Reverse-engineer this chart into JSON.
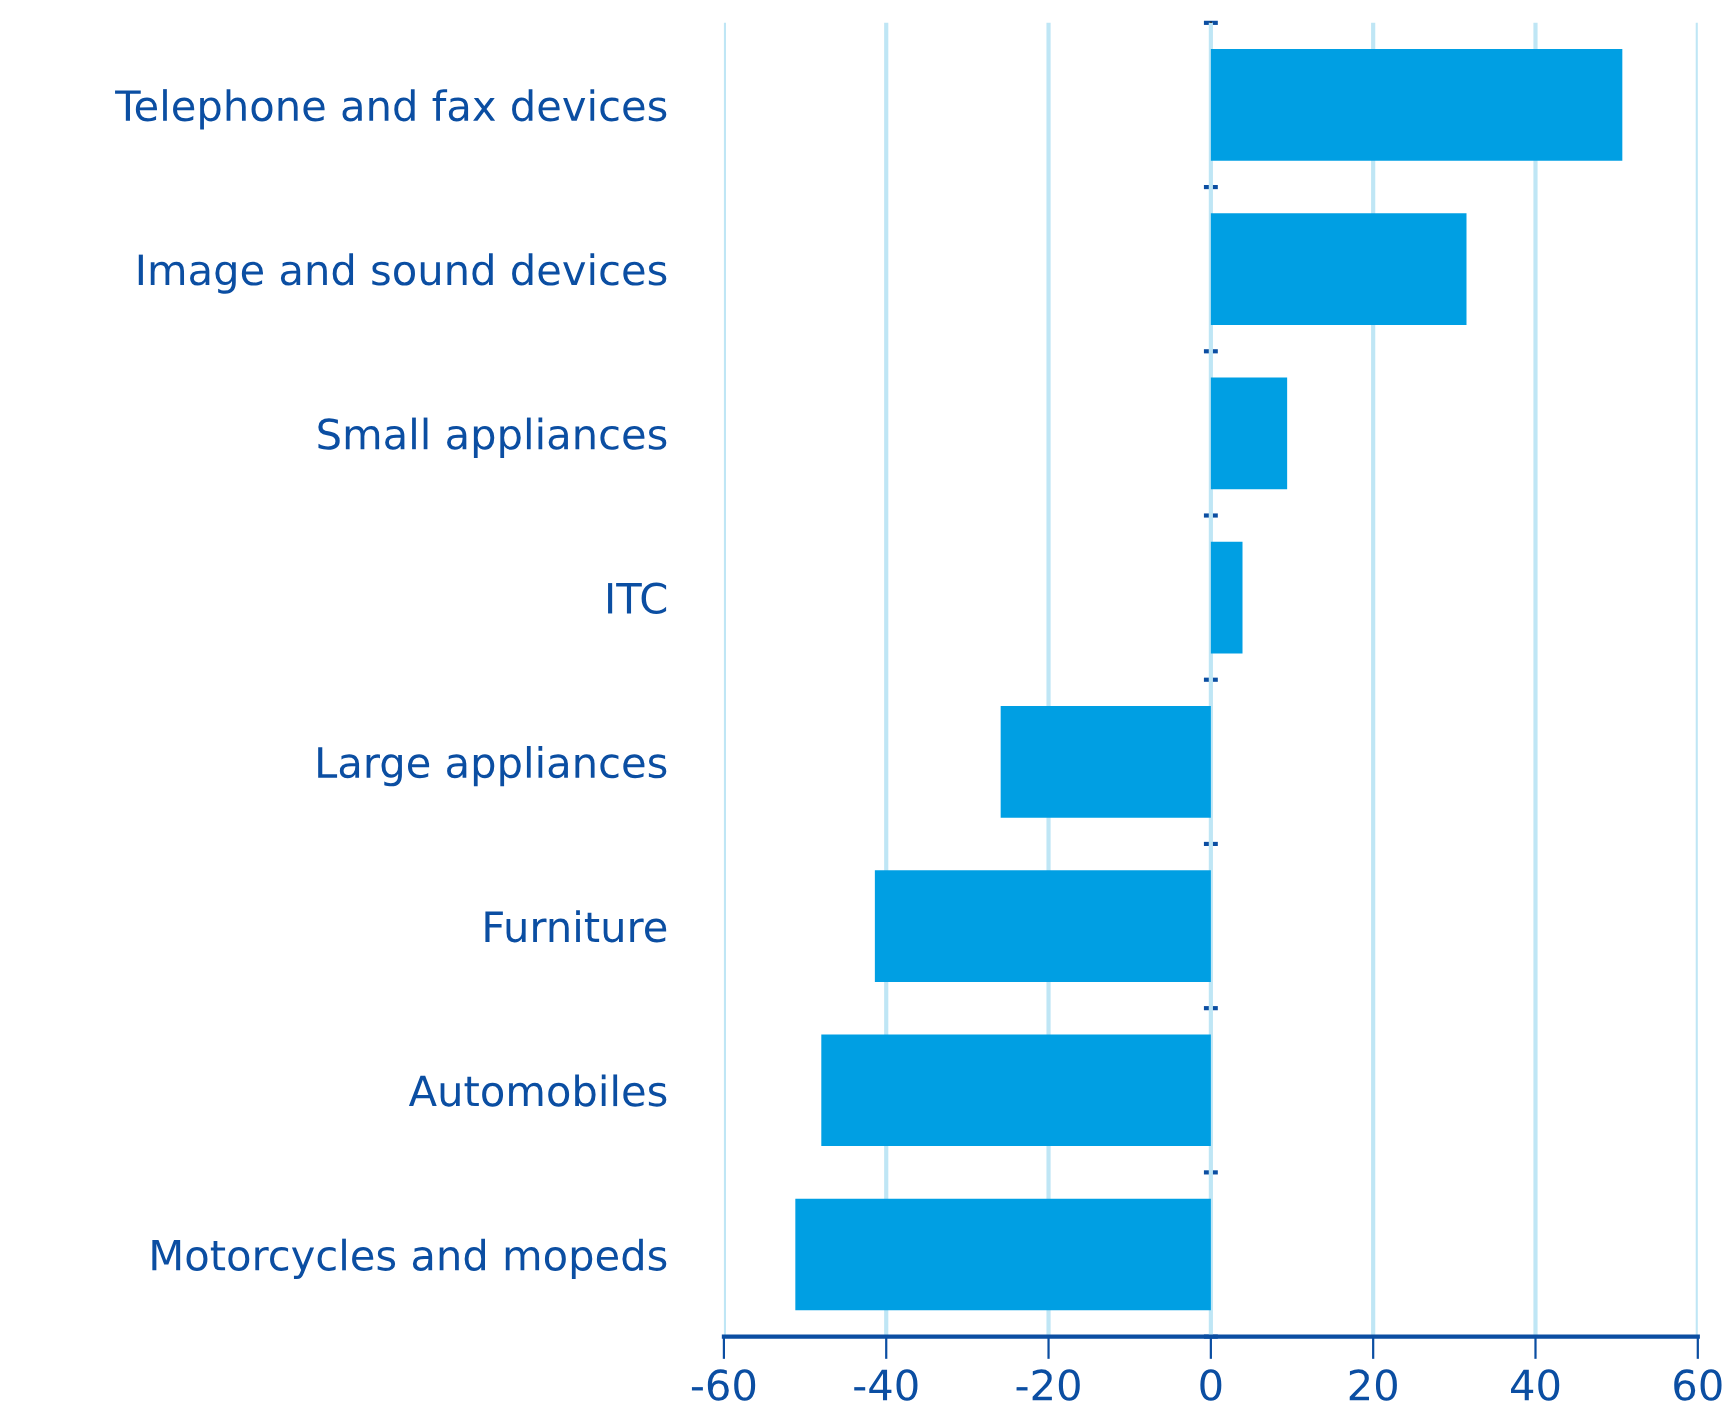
{
  "chart_data": {
    "type": "bar",
    "orientation": "horizontal",
    "categories": [
      "Telephone and fax devices",
      "Image and sound devices",
      "Small appliances",
      "ITC",
      "Large appliances",
      "Furniture",
      "Automobiles",
      "Motorcycles and mopeds"
    ],
    "values": [
      50.7,
      31.5,
      9.4,
      3.9,
      -25.9,
      -41.4,
      -48,
      -51.2
    ],
    "color": "#009fe3",
    "xlim": [
      -60,
      60
    ],
    "xticks": [
      -60,
      -40,
      -20,
      0,
      20,
      40,
      60
    ],
    "grid": "x",
    "legend": false
  }
}
